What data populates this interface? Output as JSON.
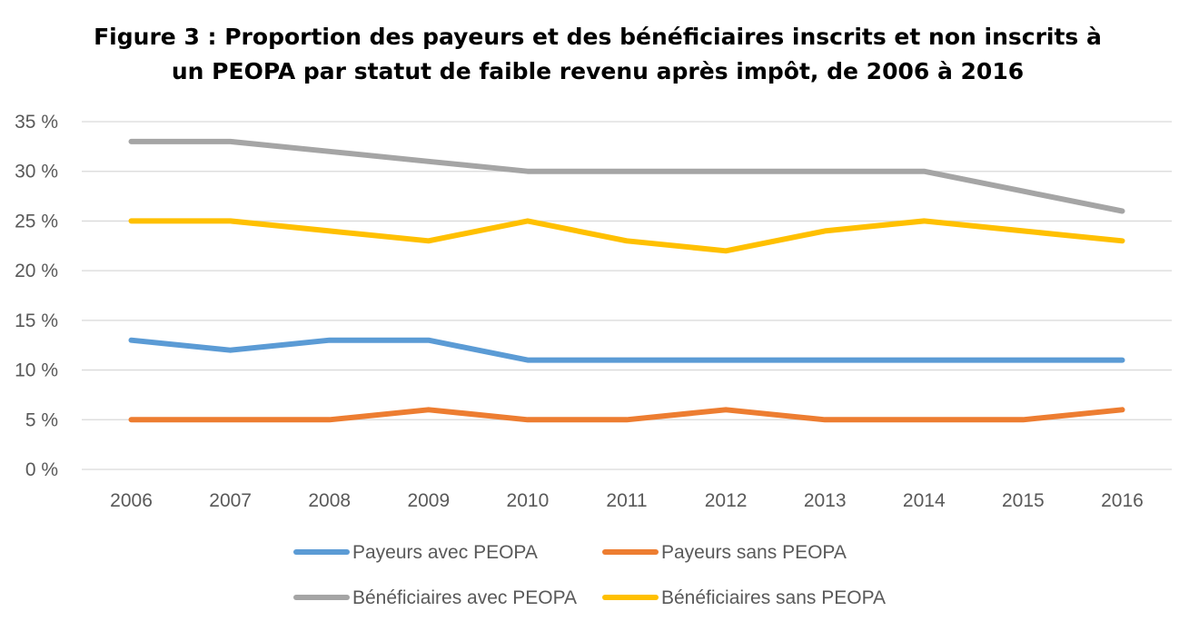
{
  "chart_data": {
    "type": "line",
    "title_lines": [
      "Figure 3 : Proportion des payeurs et des bénéficiaires inscrits et non inscrits à",
      "un PEOPA par statut de faible revenu après impôt, de 2006 à 2016"
    ],
    "xlabel": "",
    "ylabel": "",
    "x": [
      "2006",
      "2007",
      "2008",
      "2009",
      "2010",
      "2011",
      "2012",
      "2013",
      "2014",
      "2015",
      "2016"
    ],
    "ylim": [
      0,
      35
    ],
    "yticks": [
      0,
      5,
      10,
      15,
      20,
      25,
      30,
      35
    ],
    "ytick_labels": [
      "0 %",
      "5 %",
      "10 %",
      "15 %",
      "20 %",
      "25 %",
      "30 %",
      "35 %"
    ],
    "grid": true,
    "legend_position": "bottom",
    "series": [
      {
        "name": "Payeurs avec PEOPA",
        "color": "#5B9BD5",
        "values": [
          13,
          12,
          13,
          13,
          11,
          11,
          11,
          11,
          11,
          11,
          11
        ]
      },
      {
        "name": "Payeurs sans PEOPA",
        "color": "#ED7D31",
        "values": [
          5,
          5,
          5,
          6,
          5,
          5,
          6,
          5,
          5,
          5,
          6
        ]
      },
      {
        "name": "Bénéficiaires avec PEOPA",
        "color": "#A5A5A5",
        "values": [
          33,
          33,
          32,
          31,
          30,
          30,
          30,
          30,
          30,
          28,
          26
        ]
      },
      {
        "name": "Bénéficiaires sans PEOPA",
        "color": "#FFC000",
        "values": [
          25,
          25,
          24,
          23,
          25,
          23,
          22,
          24,
          25,
          24,
          23
        ]
      }
    ]
  }
}
